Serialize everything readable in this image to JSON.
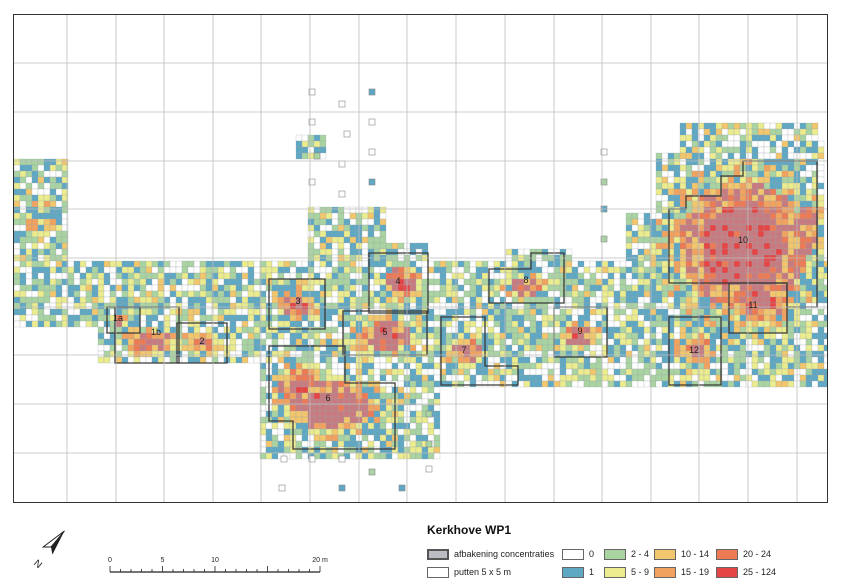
{
  "title": "Kerkhove WP1",
  "legend": {
    "outline_item": {
      "label": "afbakening concentraties",
      "color": "#b9bcc2"
    },
    "pit_item": {
      "label": "putten 5 x 5 m",
      "color": "#ffffff"
    },
    "classes": [
      {
        "label": "0",
        "color": "#ffffff"
      },
      {
        "label": "1",
        "color": "#5fa8c4"
      },
      {
        "label": "2 - 4",
        "color": "#a9d4a1"
      },
      {
        "label": "5 - 9",
        "color": "#ebec8e"
      },
      {
        "label": "10 - 14",
        "color": "#f1c66c"
      },
      {
        "label": "15 - 19",
        "color": "#f2a25f"
      },
      {
        "label": "20 - 24",
        "color": "#ec7a55"
      },
      {
        "label": "25 - 124",
        "color": "#e64545"
      }
    ]
  },
  "concentration_fill": "#c77b80",
  "concentrations": [
    "1a",
    "1b",
    "2",
    "3",
    "4",
    "5",
    "6",
    "7",
    "8",
    "9",
    "10",
    "11",
    "12"
  ],
  "scale_bar": {
    "ticks": [
      "0",
      "5",
      "10",
      "20 m"
    ],
    "values": [
      0,
      5,
      10,
      20
    ]
  },
  "north_arrow": {
    "label": "N"
  }
}
